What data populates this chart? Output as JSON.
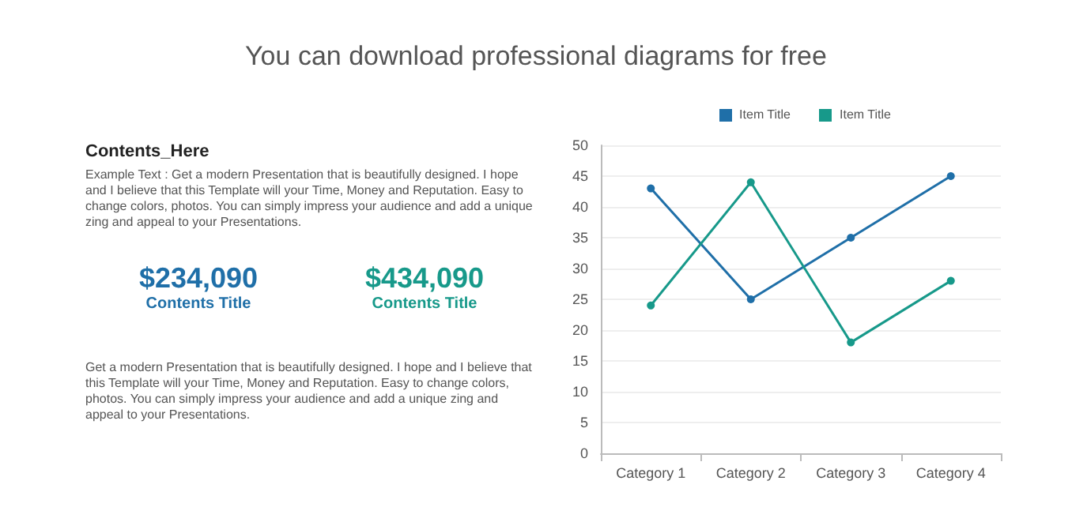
{
  "chart_data": [
    {
      "type": "other",
      "subtitle": "You can download professional diagrams for free",
      "title": "Contents_Here",
      "annotations": [
        "Example Text : Get a modern Presentation that is beautifully designed. I hope and I believe that this Template will your Time, Money and Reputation. Easy to change colors, photos. You can simply impress your audience and add a unique zing and appeal to your Presentations.",
        "$234,090",
        "Contents Title",
        "$434,090",
        "Contents Title",
        "Get a modern Presentation that is beautifully designed. I hope and I believe that this Template will your Time, Money and Reputation. Easy to change colors, photos. You can simply impress your audience and add a unique zing and appeal to your Presentations."
      ],
      "colors": [
        "#555555",
        "#1f6fa8",
        "#1f6fa8",
        "#17998a",
        "#17998a",
        "#555555"
      ]
    },
    {
      "type": "line",
      "categories": [
        "Category 1",
        "Category 2",
        "Category 3",
        "Category 4"
      ],
      "series": [
        {
          "name": "Item Title",
          "color": "#1f6fa8",
          "values": [
            43,
            25,
            35,
            45
          ]
        },
        {
          "name": "Item Title",
          "color": "#17998a",
          "values": [
            24,
            44,
            18,
            28
          ]
        }
      ],
      "ylim": [
        0,
        50
      ],
      "yticks": [
        0,
        5,
        10,
        15,
        20,
        25,
        30,
        35,
        40,
        45,
        50
      ],
      "grid": "y",
      "legend": "top",
      "marker": "circle"
    }
  ]
}
